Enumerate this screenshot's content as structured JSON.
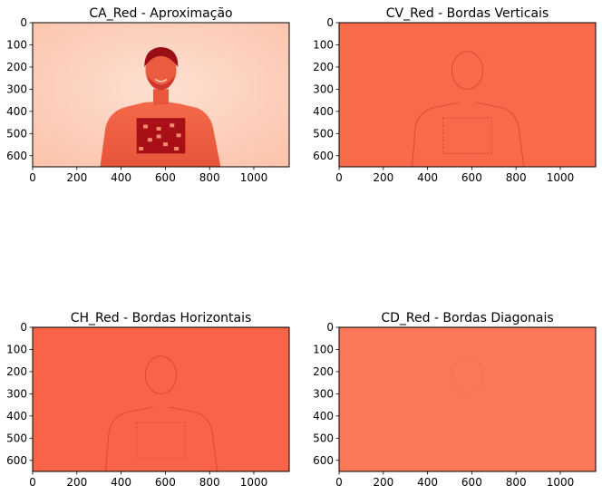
{
  "chart_data": [
    {
      "type": "heatmap",
      "title": "CA_Red - Aproximação",
      "xlim": [
        0,
        1160
      ],
      "ylim": [
        650,
        0
      ],
      "xticks": [
        0,
        200,
        400,
        600,
        800,
        1000
      ],
      "yticks": [
        0,
        100,
        200,
        300,
        400,
        500,
        600
      ],
      "colormap": "Reds",
      "background_color": "#fcc8b2",
      "content": "person"
    },
    {
      "type": "heatmap",
      "title": "CV_Red - Bordas Verticais",
      "xlim": [
        0,
        1160
      ],
      "ylim": [
        650,
        0
      ],
      "xticks": [
        0,
        200,
        400,
        600,
        800,
        1000
      ],
      "yticks": [
        0,
        100,
        200,
        300,
        400,
        500,
        600
      ],
      "colormap": "Reds",
      "background_color": "#f96a4b",
      "content": "edges"
    },
    {
      "type": "heatmap",
      "title": "CH_Red - Bordas Horizontais",
      "xlim": [
        0,
        1160
      ],
      "ylim": [
        650,
        0
      ],
      "xticks": [
        0,
        200,
        400,
        600,
        800,
        1000
      ],
      "yticks": [
        0,
        100,
        200,
        300,
        400,
        500,
        600
      ],
      "colormap": "Reds",
      "background_color": "#f86447",
      "content": "edges"
    },
    {
      "type": "heatmap",
      "title": "CD_Red - Bordas Diagonais",
      "xlim": [
        0,
        1160
      ],
      "ylim": [
        650,
        0
      ],
      "xticks": [
        0,
        200,
        400,
        600,
        800,
        1000
      ],
      "yticks": [
        0,
        100,
        200,
        300,
        400,
        500,
        600
      ],
      "colormap": "Reds",
      "background_color": "#fa7858",
      "content": "faint"
    }
  ]
}
